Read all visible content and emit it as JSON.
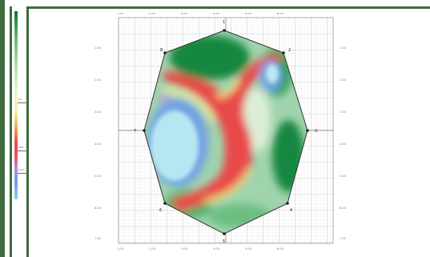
{
  "legend": {
    "colors": [
      "#0a7a35",
      "#63b77d",
      "#b7dfb9",
      "#ebf5dc",
      "#f7f0a0",
      "#f0a84a",
      "#e94a4a",
      "#e8506e",
      "#b98de0",
      "#6f9fe0",
      "#8cd0ee"
    ],
    "labels": [
      "Au",
      "Pb%",
      "Cu%"
    ]
  },
  "axes": {
    "top": [
      "1.00",
      "2.00",
      "3.00",
      "4.00",
      "5.00",
      "6.00"
    ],
    "bottom": [
      "1.00",
      "2.00",
      "3.00",
      "4.00",
      "5.00",
      "6.00"
    ],
    "left": [
      "1.00",
      "2.00",
      "3.00",
      "4.00",
      "5.00",
      "6.00",
      "7.00"
    ],
    "right": [
      "1.00",
      "2.00",
      "3.00",
      "4.00",
      "5.00",
      "6.00",
      "7.00"
    ]
  },
  "points": [
    "1",
    "2",
    "3",
    "4",
    "5",
    "6",
    "7",
    "8"
  ],
  "colors": {
    "frame": "#3d6b3d",
    "grid_major": "#9a9a9a",
    "grid_minor": "#d8d8d8",
    "outline": "#333333"
  }
}
